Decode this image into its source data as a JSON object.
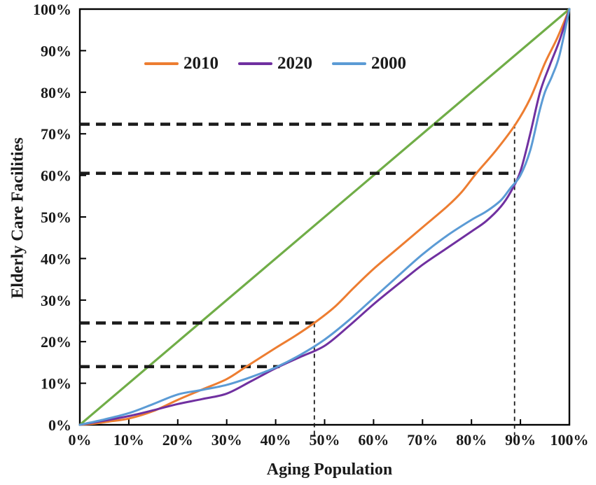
{
  "chart_data": {
    "type": "line",
    "title": "",
    "xlabel": "Aging Population",
    "ylabel": "Elderly Care Facilities",
    "xlim": [
      0,
      100
    ],
    "ylim": [
      0,
      100
    ],
    "grid": false,
    "x_ticks": [
      "0%",
      "10%",
      "20%",
      "30%",
      "40%",
      "50%",
      "60%",
      "70%",
      "80%",
      "90%",
      "100%"
    ],
    "y_ticks": [
      "0%",
      "10%",
      "20%",
      "30%",
      "40%",
      "50%",
      "60%",
      "70%",
      "80%",
      "90%",
      "100%"
    ],
    "legend": {
      "position": "top-inside",
      "entries": [
        {
          "label": "2010",
          "color": "#ED7D31"
        },
        {
          "label": "2020",
          "color": "#7030A0"
        },
        {
          "label": "2000",
          "color": "#5B9BD5"
        }
      ]
    },
    "series": [
      {
        "name": "equality-line",
        "color": "#70AD47",
        "points": [
          [
            0,
            0
          ],
          [
            100,
            100
          ]
        ]
      },
      {
        "name": "2010",
        "color": "#ED7D31",
        "points": [
          [
            0,
            0
          ],
          [
            3,
            0.3
          ],
          [
            6,
            0.8
          ],
          [
            10,
            1.5
          ],
          [
            15,
            3.3
          ],
          [
            20,
            6
          ],
          [
            25,
            8.5
          ],
          [
            30,
            11
          ],
          [
            34,
            14
          ],
          [
            40,
            18.5
          ],
          [
            44,
            21.4
          ],
          [
            48,
            24.6
          ],
          [
            52,
            28.3
          ],
          [
            56,
            33
          ],
          [
            60,
            37.5
          ],
          [
            65,
            42.5
          ],
          [
            70,
            47.5
          ],
          [
            75,
            52.5
          ],
          [
            78,
            56
          ],
          [
            81,
            60.5
          ],
          [
            85,
            66
          ],
          [
            89,
            72.3
          ],
          [
            92,
            78.5
          ],
          [
            95,
            87
          ],
          [
            97.5,
            93
          ],
          [
            100,
            100
          ]
        ]
      },
      {
        "name": "2020",
        "color": "#7030A0",
        "points": [
          [
            0,
            0
          ],
          [
            5,
            1
          ],
          [
            10,
            2.1
          ],
          [
            15,
            3.5
          ],
          [
            20,
            5
          ],
          [
            25,
            6.2
          ],
          [
            30,
            7.5
          ],
          [
            35,
            10.5
          ],
          [
            40,
            13.6
          ],
          [
            45,
            16.3
          ],
          [
            50,
            19
          ],
          [
            55,
            23.8
          ],
          [
            60,
            29
          ],
          [
            65,
            33.8
          ],
          [
            70,
            38.5
          ],
          [
            75,
            42.5
          ],
          [
            80,
            46.5
          ],
          [
            83,
            49
          ],
          [
            86,
            52.5
          ],
          [
            88,
            56
          ],
          [
            90,
            61
          ],
          [
            92,
            70
          ],
          [
            94,
            80
          ],
          [
            96,
            86.5
          ],
          [
            98,
            92.5
          ],
          [
            100,
            100
          ]
        ]
      },
      {
        "name": "2000",
        "color": "#5B9BD5",
        "points": [
          [
            0,
            0
          ],
          [
            5,
            1.3
          ],
          [
            10,
            2.8
          ],
          [
            15,
            5
          ],
          [
            20,
            7.3
          ],
          [
            25,
            8.4
          ],
          [
            30,
            9.6
          ],
          [
            35,
            11.5
          ],
          [
            40,
            13.8
          ],
          [
            45,
            16.8
          ],
          [
            50,
            20.5
          ],
          [
            55,
            25.2
          ],
          [
            60,
            30.5
          ],
          [
            65,
            35.8
          ],
          [
            70,
            41
          ],
          [
            75,
            45.5
          ],
          [
            80,
            49.3
          ],
          [
            83,
            51.3
          ],
          [
            86,
            54
          ],
          [
            88,
            57
          ],
          [
            90,
            60
          ],
          [
            92,
            66
          ],
          [
            93.8,
            75
          ],
          [
            95,
            80
          ],
          [
            96.5,
            84
          ],
          [
            98,
            89
          ],
          [
            100,
            100
          ]
        ]
      }
    ],
    "annotations": {
      "h_dashed_lines": [
        {
          "y": 72.3,
          "x_start": 0,
          "x_end": 88.8
        },
        {
          "y": 60.5,
          "x_start": 0,
          "x_end": 88.8
        },
        {
          "y": 24.5,
          "x_start": 0,
          "x_end": 47.9
        },
        {
          "y": 14.0,
          "x_start": 0,
          "x_end": 40.8
        }
      ],
      "v_dashed_lines": [
        {
          "x": 88.8,
          "y_top": 72.3,
          "y_bottom": -2.5
        },
        {
          "x": 47.9,
          "y_top": 24.5,
          "y_bottom": -2.5
        }
      ]
    }
  }
}
